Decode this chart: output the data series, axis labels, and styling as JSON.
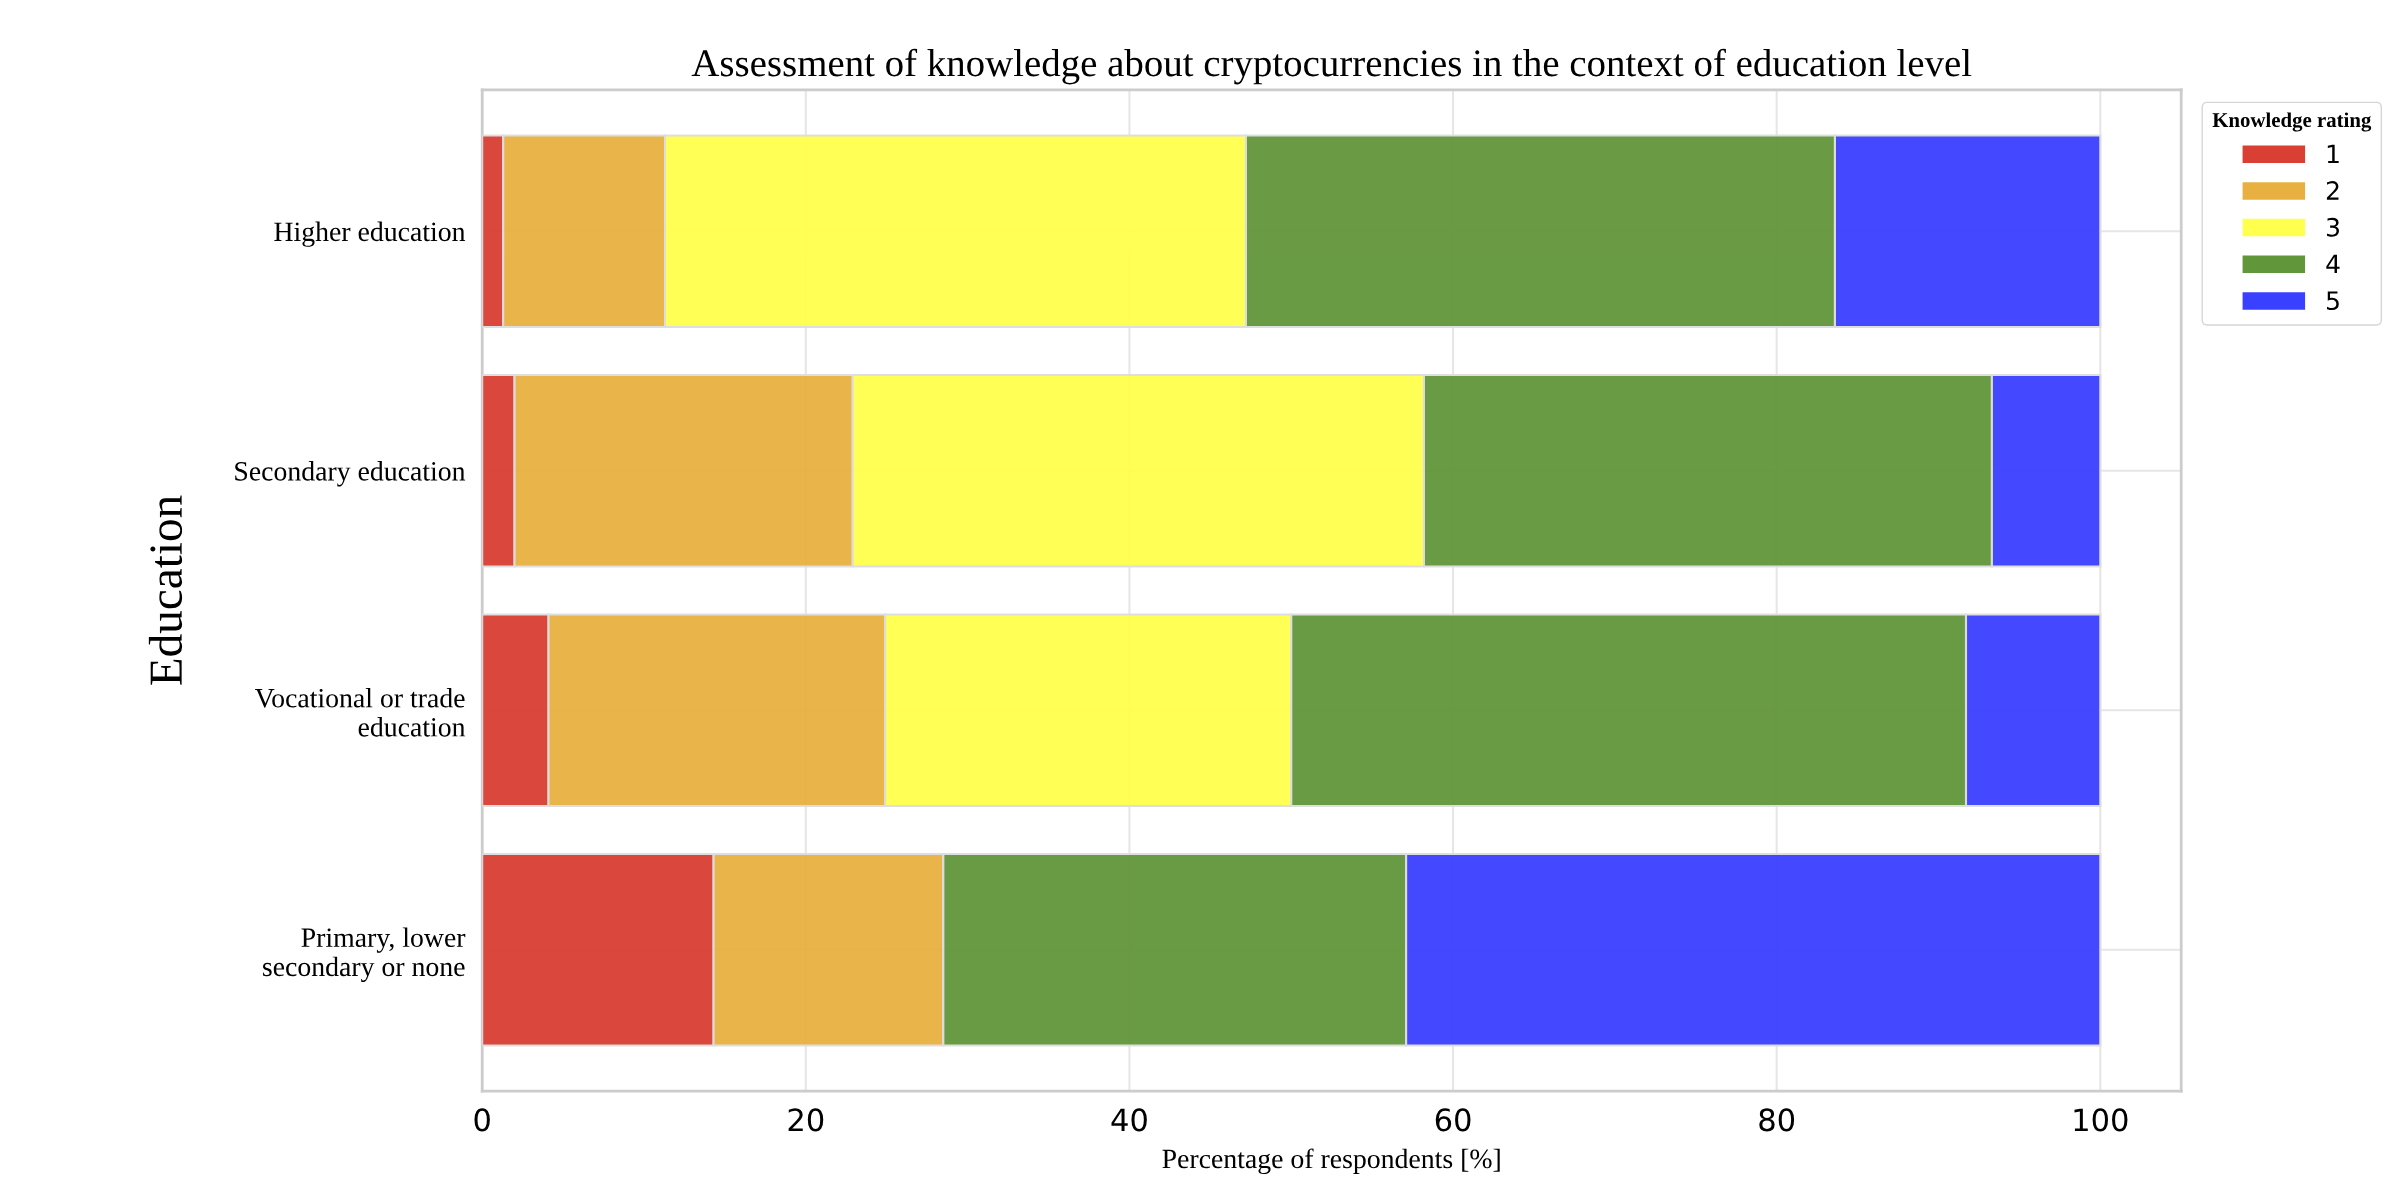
{
  "chart_data": {
    "type": "bar",
    "orientation": "horizontal",
    "stacked": true,
    "title": "Assessment of knowledge about cryptocurrencies in the context of education level",
    "xlabel": "Percentage of respondents [%]",
    "ylabel": "Education",
    "legend_title": "Knowledge rating",
    "legend": "top right",
    "grid": true,
    "categories": [
      "Higher education",
      "Secondary education",
      "Vocational or trade\neducation",
      "Primary, lower\nsecondary or none"
    ],
    "xlim": [
      0,
      105
    ],
    "xticks": [
      0,
      20,
      40,
      60,
      80,
      100
    ],
    "series": [
      {
        "name": "1",
        "color": "#d93f33",
        "values": [
          1.3,
          2.0,
          4.1,
          14.3
        ]
      },
      {
        "name": "2",
        "color": "#e8b040",
        "values": [
          10.0,
          20.9,
          20.8,
          14.2
        ]
      },
      {
        "name": "3",
        "color": "#ffff4d",
        "values": [
          35.9,
          35.3,
          25.1,
          0
        ]
      },
      {
        "name": "4",
        "color": "#62963a",
        "values": [
          36.4,
          35.1,
          41.7,
          28.6
        ]
      },
      {
        "name": "5",
        "color": "#3a40ff",
        "values": [
          16.4,
          6.7,
          8.3,
          42.9
        ]
      }
    ]
  }
}
